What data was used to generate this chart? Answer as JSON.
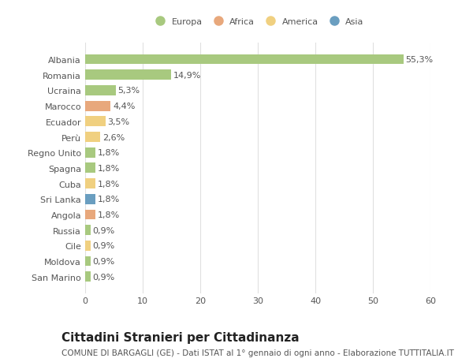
{
  "countries": [
    "Albania",
    "Romania",
    "Ucraina",
    "Marocco",
    "Ecuador",
    "Perù",
    "Regno Unito",
    "Spagna",
    "Cuba",
    "Sri Lanka",
    "Angola",
    "Russia",
    "Cile",
    "Moldova",
    "San Marino"
  ],
  "values": [
    55.3,
    14.9,
    5.3,
    4.4,
    3.5,
    2.6,
    1.8,
    1.8,
    1.8,
    1.8,
    1.8,
    0.9,
    0.9,
    0.9,
    0.9
  ],
  "labels": [
    "55,3%",
    "14,9%",
    "5,3%",
    "4,4%",
    "3,5%",
    "2,6%",
    "1,8%",
    "1,8%",
    "1,8%",
    "1,8%",
    "1,8%",
    "0,9%",
    "0,9%",
    "0,9%",
    "0,9%"
  ],
  "continents": [
    "Europa",
    "Europa",
    "Europa",
    "Africa",
    "America",
    "America",
    "Europa",
    "Europa",
    "America",
    "Asia",
    "Africa",
    "Europa",
    "America",
    "Europa",
    "Europa"
  ],
  "continent_colors": {
    "Europa": "#a8c97f",
    "Africa": "#e8a87c",
    "America": "#f0d080",
    "Asia": "#6a9ec0"
  },
  "legend_order": [
    "Europa",
    "Africa",
    "America",
    "Asia"
  ],
  "legend_colors": [
    "#a8c97f",
    "#e8a87c",
    "#f0d080",
    "#6a9ec0"
  ],
  "xlim": [
    0,
    60
  ],
  "xticks": [
    0,
    10,
    20,
    30,
    40,
    50,
    60
  ],
  "title": "Cittadini Stranieri per Cittadinanza",
  "subtitle": "COMUNE DI BARGAGLI (GE) - Dati ISTAT al 1° gennaio di ogni anno - Elaborazione TUTTITALIA.IT",
  "background_color": "#ffffff",
  "grid_color": "#e0e0e0",
  "bar_height": 0.65,
  "label_fontsize": 8.0,
  "ytick_fontsize": 8.0,
  "xtick_fontsize": 8.0,
  "title_fontsize": 11,
  "subtitle_fontsize": 7.5
}
